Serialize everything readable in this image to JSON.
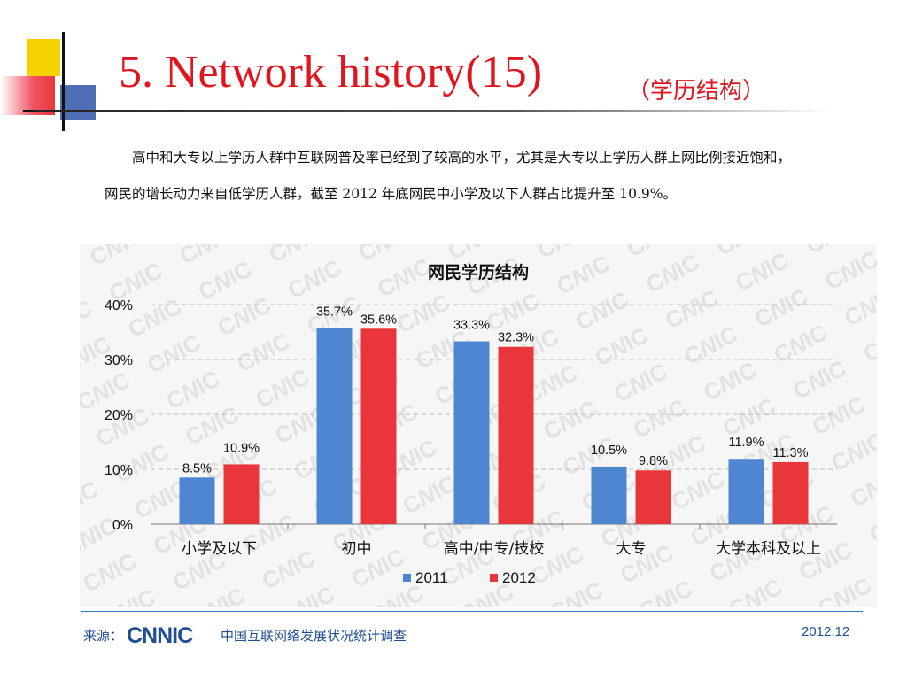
{
  "slide": {
    "title": "5. Network history(15)",
    "title_sub": "（学历结构）",
    "intro": "高中和大专以上学历人群中互联网普及率已经到了较高的水平，尤其是大专以上学历人群上网比例接近饱和，网民的增长动力来自低学历人群，截至 2012 年底网民中小学及以下人群占比提升至 10.9%。"
  },
  "footer": {
    "source_label": "来源：",
    "logo_text": "CNNIC",
    "org_name": "中国互联网络发展状况统计调查",
    "date": "2012.12",
    "accent": "#1f4e95"
  },
  "chart_data": {
    "type": "bar",
    "title": "网民学历结构",
    "categories": [
      "小学及以下",
      "初中",
      "高中/中专/技校",
      "大专",
      "大学本科及以上"
    ],
    "series": [
      {
        "name": "2011",
        "values": [
          8.5,
          35.7,
          33.3,
          10.5,
          11.9
        ],
        "labels": [
          "8.5%",
          "35.7%",
          "33.3%",
          "10.5%",
          "11.9%"
        ],
        "color": "#4f86d1"
      },
      {
        "name": "2012",
        "values": [
          10.9,
          35.6,
          32.3,
          9.8,
          11.3
        ],
        "labels": [
          "10.9%",
          "35.6%",
          "32.3%",
          "9.8%",
          "11.3%"
        ],
        "color": "#e8363a"
      }
    ],
    "y_ticks": [
      "0%",
      "10%",
      "20%",
      "30%",
      "40%"
    ],
    "ylim": [
      0,
      40
    ],
    "unit": "%",
    "grid": true,
    "legend_position": "bottom",
    "xlabel": "",
    "ylabel": ""
  }
}
